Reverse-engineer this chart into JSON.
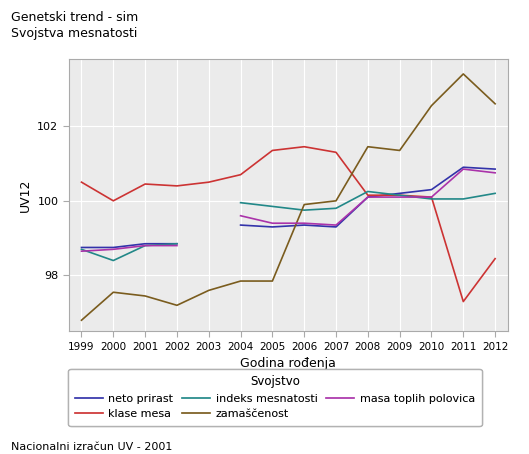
{
  "title_line1": "Genetski trend - sim",
  "title_line2": "Svojstva mesnatosti",
  "xlabel": "Godina rođenja",
  "ylabel": "UV12",
  "legend_title": "Svojstvo",
  "footnote": "Nacionalni izračun UV - 2001",
  "years": [
    1999,
    2000,
    2001,
    2002,
    2003,
    2004,
    2005,
    2006,
    2007,
    2008,
    2009,
    2010,
    2011,
    2012
  ],
  "series_order": [
    "neto prirast",
    "klase mesa",
    "indeks mesnatosti",
    "zamaščenost",
    "masa toplih polovica"
  ],
  "series": {
    "neto prirast": {
      "color": "#3333aa",
      "values": [
        98.75,
        98.75,
        98.85,
        98.85,
        null,
        99.35,
        99.3,
        99.35,
        99.3,
        100.1,
        100.2,
        100.3,
        100.9,
        100.85
      ]
    },
    "klase mesa": {
      "color": "#cc3333",
      "values": [
        100.5,
        100.0,
        100.45,
        100.4,
        100.5,
        100.7,
        101.35,
        101.45,
        101.3,
        100.15,
        100.15,
        100.1,
        97.3,
        98.45
      ]
    },
    "indeks mesnatosti": {
      "color": "#228888",
      "values": [
        98.7,
        98.4,
        98.8,
        98.85,
        null,
        99.95,
        99.85,
        99.75,
        99.8,
        100.25,
        100.15,
        100.05,
        100.05,
        100.2
      ]
    },
    "zamaščenost": {
      "color": "#7a5c1e",
      "values": [
        96.8,
        97.55,
        97.45,
        97.2,
        97.6,
        97.85,
        97.85,
        99.9,
        100.0,
        101.45,
        101.35,
        102.55,
        103.4,
        102.6
      ]
    },
    "masa toplih polovica": {
      "color": "#aa33aa",
      "values": [
        98.65,
        98.7,
        98.8,
        98.8,
        null,
        99.6,
        99.4,
        99.4,
        99.35,
        100.1,
        100.1,
        100.1,
        100.85,
        100.75
      ]
    }
  },
  "ylim": [
    96.5,
    103.8
  ],
  "yticks": [
    98,
    100,
    102
  ],
  "background_color": "#ffffff",
  "plot_bg_color": "#ebebeb",
  "grid_color": "#ffffff",
  "figsize": [
    5.29,
    4.54
  ],
  "dpi": 100
}
